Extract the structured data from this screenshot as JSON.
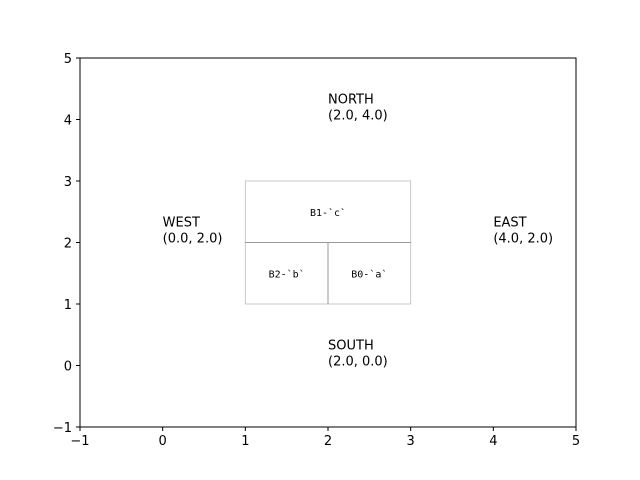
{
  "chart_data": {
    "type": "scatter",
    "title": "",
    "xlabel": "",
    "ylabel": "",
    "xlim": [
      -1,
      5
    ],
    "ylim": [
      -1,
      5
    ],
    "xticks": [
      -1,
      0,
      1,
      2,
      3,
      4,
      5
    ],
    "yticks": [
      -1,
      0,
      1,
      2,
      3,
      4,
      5
    ],
    "grid": false,
    "annotations": [
      {
        "id": "north",
        "line1": "NORTH",
        "line2": "(2.0, 4.0)",
        "x": 2.0,
        "y": 4.0
      },
      {
        "id": "west",
        "line1": "WEST",
        "line2": "(0.0, 2.0)",
        "x": 0.0,
        "y": 2.0
      },
      {
        "id": "east",
        "line1": "EAST",
        "line2": "(4.0, 2.0)",
        "x": 4.0,
        "y": 2.0
      },
      {
        "id": "south",
        "line1": "SOUTH",
        "line2": "(2.0, 0.0)",
        "x": 2.0,
        "y": 0.0
      }
    ],
    "boxes": [
      {
        "id": "b1",
        "label": "B1-`c`",
        "x0": 1,
        "y0": 2,
        "x1": 3,
        "y1": 3
      },
      {
        "id": "b2",
        "label": "B2-`b`",
        "x0": 1,
        "y0": 1,
        "x1": 2,
        "y1": 2
      },
      {
        "id": "b0",
        "label": "B0-`a`",
        "x0": 2,
        "y0": 1,
        "x1": 3,
        "y1": 2
      }
    ],
    "colors": {
      "box_edge": "#c8c8c8",
      "divider": "#999999",
      "axes": "#000000"
    }
  }
}
